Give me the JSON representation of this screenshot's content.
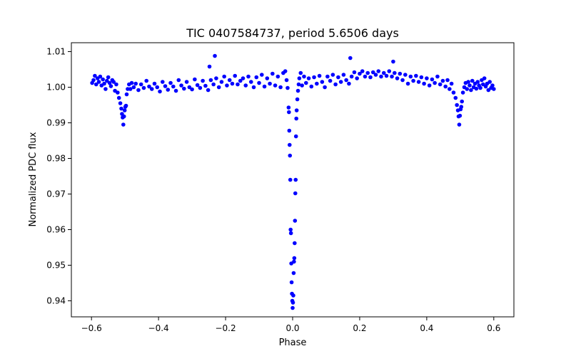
{
  "chart_data": {
    "type": "scatter",
    "title": "TIC 0407584737, period 5.6506 days",
    "xlabel": "Phase",
    "ylabel": "Normalized PDC flux",
    "xlim": [
      -0.66,
      0.66
    ],
    "ylim": [
      0.9355,
      1.0125
    ],
    "x_ticks": [
      -0.6,
      -0.4,
      -0.2,
      0.0,
      0.2,
      0.4,
      0.6
    ],
    "x_tick_labels": [
      "−0.6",
      "−0.4",
      "−0.2",
      "0.0",
      "0.2",
      "0.4",
      "0.6"
    ],
    "y_ticks": [
      0.94,
      0.95,
      0.96,
      0.97,
      0.98,
      0.99,
      1.0,
      1.01
    ],
    "y_tick_labels": [
      "0.94",
      "0.95",
      "0.96",
      "0.97",
      "0.98",
      "0.99",
      "1.00",
      "1.01"
    ],
    "grid": false,
    "legend": "none",
    "marker_color": "#0000ff",
    "series": [
      {
        "points": [
          [
            -0.598,
            1.0012
          ],
          [
            -0.594,
            1.002
          ],
          [
            -0.59,
            1.0032
          ],
          [
            -0.586,
            1.0008
          ],
          [
            -0.582,
            1.0025
          ],
          [
            -0.578,
            1.0015
          ],
          [
            -0.574,
            1.003
          ],
          [
            -0.57,
            1.0005
          ],
          [
            -0.566,
            1.0022
          ],
          [
            -0.562,
            1.001
          ],
          [
            -0.558,
            0.9995
          ],
          [
            -0.554,
            1.0018
          ],
          [
            -0.55,
            1.0028
          ],
          [
            -0.546,
            1.0012
          ],
          [
            -0.542,
            1.0003
          ],
          [
            -0.538,
            1.002
          ],
          [
            -0.534,
            1.0015
          ],
          [
            -0.53,
            0.999
          ],
          [
            -0.526,
            1.0008
          ],
          [
            -0.522,
            0.9985
          ],
          [
            -0.518,
            0.997
          ],
          [
            -0.514,
            0.9955
          ],
          [
            -0.511,
            0.994
          ],
          [
            -0.509,
            0.9925
          ],
          [
            -0.507,
            0.9915
          ],
          [
            -0.505,
            0.9895
          ],
          [
            -0.503,
            0.9918
          ],
          [
            -0.501,
            0.9935
          ],
          [
            -0.499,
            0.9945
          ],
          [
            -0.497,
            0.9948
          ],
          [
            -0.495,
            0.998
          ],
          [
            -0.492,
            0.9995
          ],
          [
            -0.488,
            1.0008
          ],
          [
            -0.484,
            0.9995
          ],
          [
            -0.48,
            1.0012
          ],
          [
            -0.474,
            1.0
          ],
          [
            -0.468,
            1.001
          ],
          [
            -0.46,
            0.9992
          ],
          [
            -0.452,
            1.0008
          ],
          [
            -0.444,
            0.9998
          ],
          [
            -0.436,
            1.0018
          ],
          [
            -0.428,
            1.0002
          ],
          [
            -0.42,
            0.9995
          ],
          [
            -0.412,
            1.001
          ],
          [
            -0.404,
            1.0
          ],
          [
            -0.396,
            0.9988
          ],
          [
            -0.388,
            1.0015
          ],
          [
            -0.38,
            1.0003
          ],
          [
            -0.372,
            0.9993
          ],
          [
            -0.364,
            1.0012
          ],
          [
            -0.356,
            1.0002
          ],
          [
            -0.348,
            0.999
          ],
          [
            -0.34,
            1.002
          ],
          [
            -0.332,
            1.0005
          ],
          [
            -0.324,
            0.9996
          ],
          [
            -0.316,
            1.0015
          ],
          [
            -0.308,
            1.0
          ],
          [
            -0.3,
            0.9994
          ],
          [
            -0.292,
            1.0022
          ],
          [
            -0.284,
            1.0006
          ],
          [
            -0.276,
            0.9998
          ],
          [
            -0.268,
            1.0018
          ],
          [
            -0.26,
            1.0004
          ],
          [
            -0.252,
            0.9992
          ],
          [
            -0.248,
            1.0058
          ],
          [
            -0.244,
            1.002
          ],
          [
            -0.236,
            1.0008
          ],
          [
            -0.232,
            1.0088
          ],
          [
            -0.228,
            1.0025
          ],
          [
            -0.22,
            1.0
          ],
          [
            -0.212,
            1.0015
          ],
          [
            -0.204,
            1.003
          ],
          [
            -0.196,
            1.0005
          ],
          [
            -0.188,
            1.002
          ],
          [
            -0.18,
            1.001
          ],
          [
            -0.172,
            1.0032
          ],
          [
            -0.164,
            1.0008
          ],
          [
            -0.156,
            1.0018
          ],
          [
            -0.148,
            1.0025
          ],
          [
            -0.14,
            1.0005
          ],
          [
            -0.132,
            1.003
          ],
          [
            -0.124,
            1.0015
          ],
          [
            -0.116,
            1.0
          ],
          [
            -0.108,
            1.0028
          ],
          [
            -0.1,
            1.0012
          ],
          [
            -0.092,
            1.0035
          ],
          [
            -0.084,
            1.0002
          ],
          [
            -0.076,
            1.0025
          ],
          [
            -0.068,
            1.001
          ],
          [
            -0.06,
            1.0038
          ],
          [
            -0.052,
            1.0005
          ],
          [
            -0.044,
            1.003
          ],
          [
            -0.036,
            1.0
          ],
          [
            -0.028,
            1.004
          ],
          [
            -0.022,
            1.0045
          ],
          [
            -0.018,
            1.002
          ],
          [
            -0.015,
            0.9998
          ],
          [
            -0.012,
            0.9943
          ],
          [
            -0.011,
            0.993
          ],
          [
            -0.01,
            0.9878
          ],
          [
            -0.009,
            0.9838
          ],
          [
            -0.008,
            0.9808
          ],
          [
            -0.007,
            0.974
          ],
          [
            -0.006,
            0.96
          ],
          [
            -0.005,
            0.959
          ],
          [
            -0.004,
            0.9505
          ],
          [
            -0.003,
            0.9452
          ],
          [
            -0.002,
            0.942
          ],
          [
            -0.001,
            0.94
          ],
          [
            0.0,
            0.938
          ],
          [
            0.001,
            0.9395
          ],
          [
            0.002,
            0.9415
          ],
          [
            0.003,
            0.9478
          ],
          [
            0.004,
            0.951
          ],
          [
            0.005,
            0.952
          ],
          [
            0.006,
            0.9562
          ],
          [
            0.007,
            0.9625
          ],
          [
            0.008,
            0.9702
          ],
          [
            0.009,
            0.974
          ],
          [
            0.01,
            0.9862
          ],
          [
            0.011,
            0.9912
          ],
          [
            0.012,
            0.9935
          ],
          [
            0.014,
            0.9966
          ],
          [
            0.016,
            0.999
          ],
          [
            0.018,
            1.0008
          ],
          [
            0.02,
            1.0025
          ],
          [
            0.024,
            1.004
          ],
          [
            0.028,
            1.0005
          ],
          [
            0.034,
            1.003
          ],
          [
            0.04,
            1.0012
          ],
          [
            0.048,
            1.0025
          ],
          [
            0.056,
            1.0002
          ],
          [
            0.064,
            1.0028
          ],
          [
            0.072,
            1.001
          ],
          [
            0.08,
            1.0032
          ],
          [
            0.088,
            1.0015
          ],
          [
            0.096,
            1.0
          ],
          [
            0.104,
            1.003
          ],
          [
            0.112,
            1.0018
          ],
          [
            0.12,
            1.0035
          ],
          [
            0.128,
            1.0008
          ],
          [
            0.136,
            1.0028
          ],
          [
            0.144,
            1.0015
          ],
          [
            0.152,
            1.0035
          ],
          [
            0.16,
            1.002
          ],
          [
            0.168,
            1.001
          ],
          [
            0.172,
            1.0082
          ],
          [
            0.176,
            1.003
          ],
          [
            0.184,
            1.0042
          ],
          [
            0.192,
            1.0025
          ],
          [
            0.2,
            1.0038
          ],
          [
            0.208,
            1.0045
          ],
          [
            0.216,
            1.003
          ],
          [
            0.224,
            1.004
          ],
          [
            0.232,
            1.0028
          ],
          [
            0.24,
            1.0042
          ],
          [
            0.248,
            1.0035
          ],
          [
            0.256,
            1.0045
          ],
          [
            0.264,
            1.003
          ],
          [
            0.272,
            1.004
          ],
          [
            0.28,
            1.0032
          ],
          [
            0.288,
            1.0045
          ],
          [
            0.296,
            1.003
          ],
          [
            0.3,
            1.0072
          ],
          [
            0.304,
            1.004
          ],
          [
            0.312,
            1.0025
          ],
          [
            0.32,
            1.0038
          ],
          [
            0.328,
            1.002
          ],
          [
            0.336,
            1.0035
          ],
          [
            0.344,
            1.001
          ],
          [
            0.352,
            1.003
          ],
          [
            0.36,
            1.0018
          ],
          [
            0.368,
            1.0032
          ],
          [
            0.376,
            1.0015
          ],
          [
            0.384,
            1.0028
          ],
          [
            0.392,
            1.001
          ],
          [
            0.4,
            1.0025
          ],
          [
            0.408,
            1.0005
          ],
          [
            0.416,
            1.0022
          ],
          [
            0.424,
            1.0012
          ],
          [
            0.432,
            1.003
          ],
          [
            0.44,
            1.0008
          ],
          [
            0.448,
            1.0018
          ],
          [
            0.456,
            1.0002
          ],
          [
            0.462,
            1.002
          ],
          [
            0.468,
            0.9995
          ],
          [
            0.474,
            1.001
          ],
          [
            0.48,
            0.9985
          ],
          [
            0.486,
            0.997
          ],
          [
            0.49,
            0.995
          ],
          [
            0.493,
            0.9935
          ],
          [
            0.495,
            0.9918
          ],
          [
            0.497,
            0.9895
          ],
          [
            0.499,
            0.992
          ],
          [
            0.501,
            0.9938
          ],
          [
            0.503,
            0.9945
          ],
          [
            0.505,
            0.996
          ],
          [
            0.508,
            0.9985
          ],
          [
            0.512,
            1.0
          ],
          [
            0.516,
            1.0012
          ],
          [
            0.52,
            0.9995
          ],
          [
            0.524,
            1.0015
          ],
          [
            0.528,
            1.0005
          ],
          [
            0.532,
            0.9992
          ],
          [
            0.536,
            1.0018
          ],
          [
            0.54,
            1.0
          ],
          [
            0.544,
            1.001
          ],
          [
            0.548,
            0.9996
          ],
          [
            0.552,
            1.0015
          ],
          [
            0.556,
            1.0005
          ],
          [
            0.56,
            0.9998
          ],
          [
            0.564,
            1.002
          ],
          [
            0.568,
            1.0008
          ],
          [
            0.572,
            1.0025
          ],
          [
            0.576,
            1.0002
          ],
          [
            0.58,
            1.001
          ],
          [
            0.584,
            0.9992
          ],
          [
            0.588,
            1.0015
          ],
          [
            0.592,
            0.9998
          ],
          [
            0.596,
            1.0005
          ],
          [
            0.6,
            0.9995
          ]
        ]
      }
    ]
  }
}
